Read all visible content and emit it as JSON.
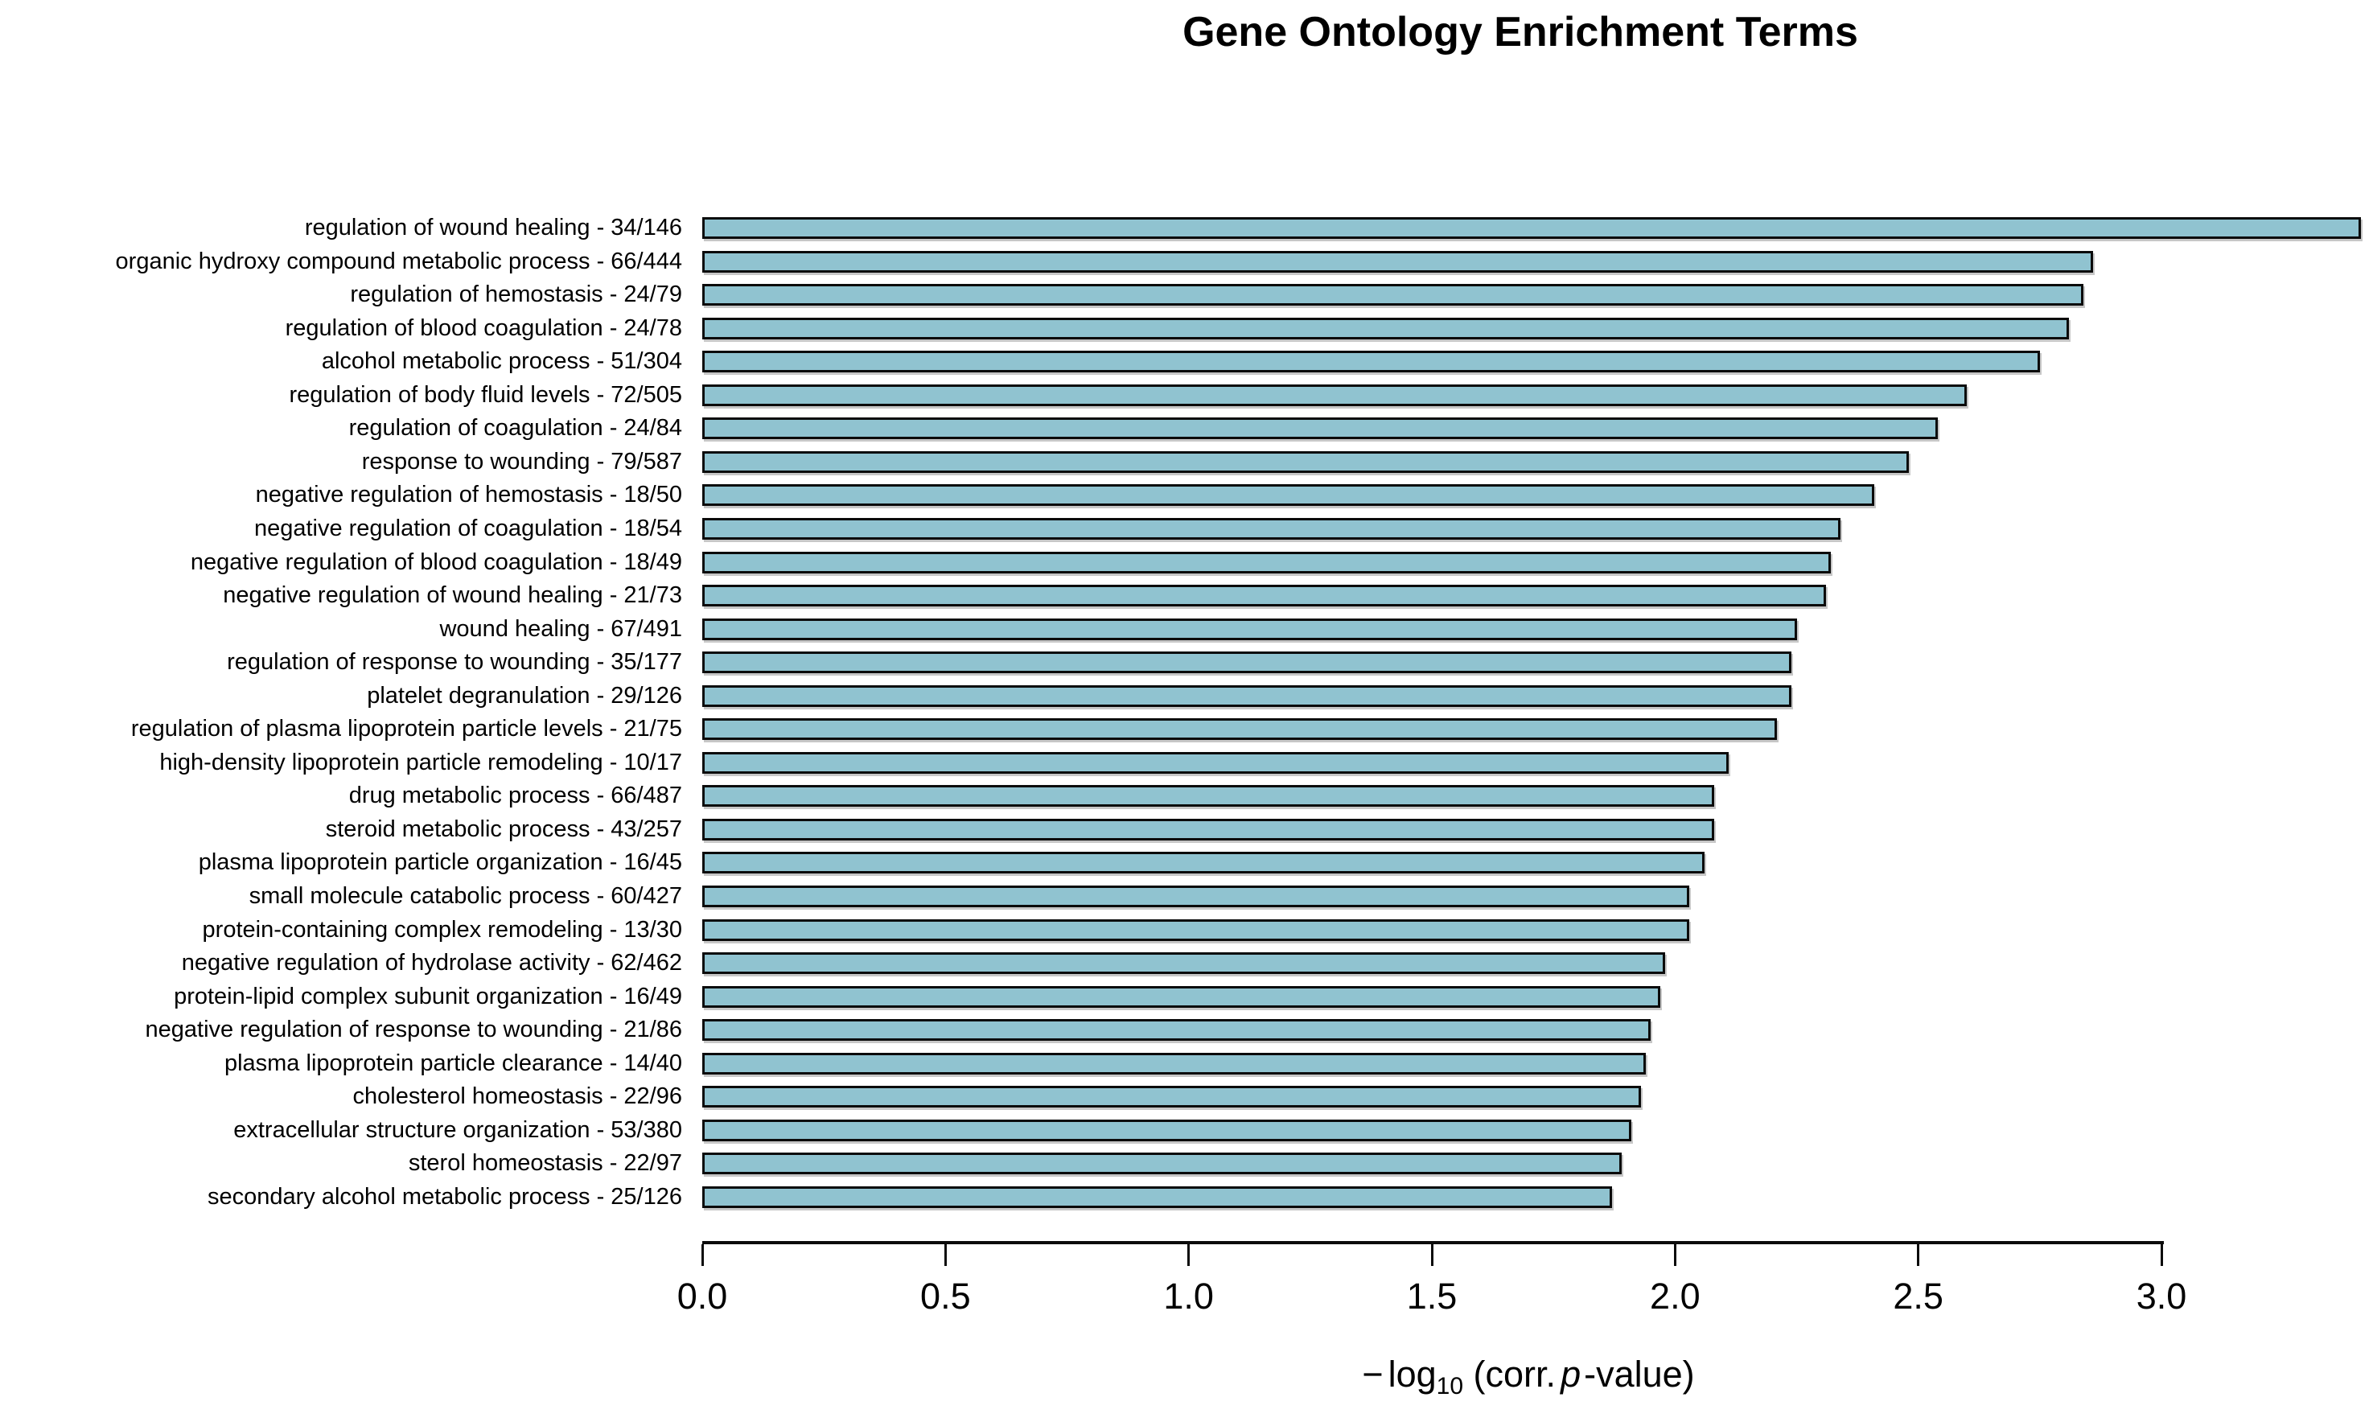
{
  "chart_data": {
    "type": "bar",
    "orientation": "horizontal",
    "title": "Gene Ontology Enrichment Terms",
    "categories": [
      "regulation of wound healing - 34/146",
      "organic hydroxy compound metabolic process - 66/444",
      "regulation of hemostasis - 24/79",
      "regulation of blood coagulation - 24/78",
      "alcohol metabolic process - 51/304",
      "regulation of body fluid levels - 72/505",
      "regulation of coagulation - 24/84",
      "response to wounding - 79/587",
      "negative regulation of hemostasis - 18/50",
      "negative regulation of coagulation - 18/54",
      "negative regulation of blood coagulation - 18/49",
      "negative regulation of wound healing - 21/73",
      "wound healing - 67/491",
      "regulation of response to wounding - 35/177",
      "platelet degranulation - 29/126",
      "regulation of plasma lipoprotein particle levels - 21/75",
      "high-density lipoprotein particle remodeling - 10/17",
      "drug metabolic process - 66/487",
      "steroid metabolic process - 43/257",
      "plasma lipoprotein particle organization - 16/45",
      "small molecule catabolic process - 60/427",
      "protein-containing complex remodeling - 13/30",
      "negative regulation of hydrolase activity - 62/462",
      "protein-lipid complex subunit organization - 16/49",
      "negative regulation of response to wounding - 21/86",
      "plasma lipoprotein particle clearance - 14/40",
      "cholesterol homeostasis - 22/96",
      "extracellular structure organization - 53/380",
      "sterol homeostasis - 22/97",
      "secondary alcohol metabolic process - 25/126"
    ],
    "values": [
      3.41,
      2.86,
      2.84,
      2.81,
      2.75,
      2.6,
      2.54,
      2.48,
      2.41,
      2.34,
      2.32,
      2.31,
      2.25,
      2.24,
      2.24,
      2.21,
      2.11,
      2.08,
      2.08,
      2.06,
      2.03,
      2.03,
      1.98,
      1.97,
      1.95,
      1.94,
      1.93,
      1.91,
      1.89,
      1.87
    ],
    "xlabel_parts": {
      "minus": "−",
      "pre": "log",
      "sub": "10",
      "mid": " (corr.",
      "p": "p",
      "post": "-value)"
    },
    "x_ticks": [
      "0.0",
      "0.5",
      "1.0",
      "1.5",
      "2.0",
      "2.5",
      "3.0"
    ],
    "xlim": [
      0.0,
      3.0
    ],
    "grid": false,
    "legend": false,
    "bar_fill_color": "#90C3D0",
    "bar_border_color": "#0b0b0b",
    "axis_color": "#0b0b0b",
    "text_color": "#000000"
  }
}
